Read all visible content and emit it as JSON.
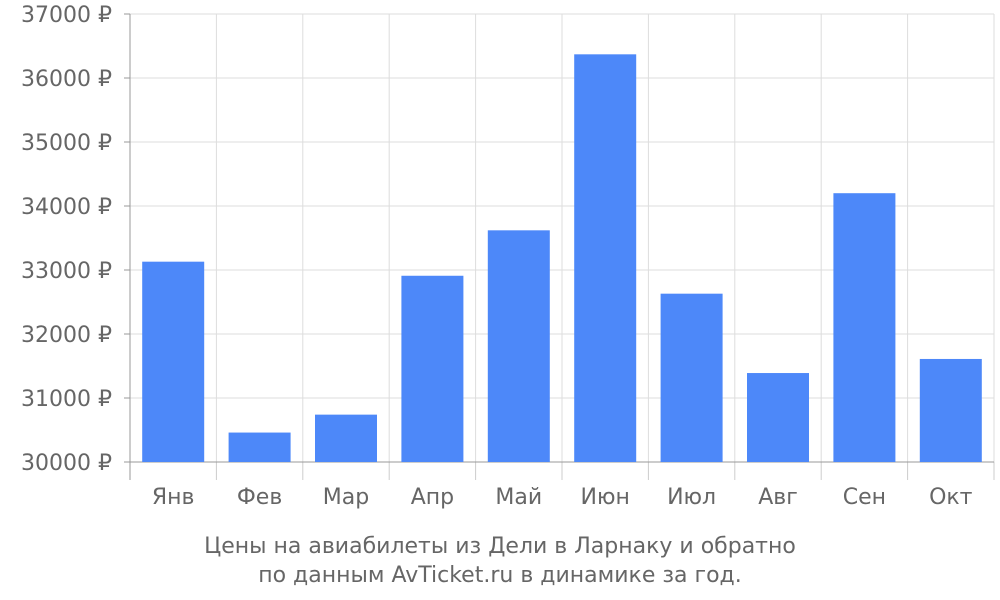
{
  "chart_data": {
    "type": "bar",
    "categories": [
      "Янв",
      "Фев",
      "Мар",
      "Апр",
      "Май",
      "Июн",
      "Июл",
      "Авг",
      "Сен",
      "Окт"
    ],
    "values": [
      33130,
      30460,
      30740,
      32910,
      33620,
      36370,
      32630,
      31390,
      34200,
      31610
    ],
    "ylim": [
      30000,
      37000
    ],
    "yticks": [
      30000,
      31000,
      32000,
      33000,
      34000,
      35000,
      36000,
      37000
    ],
    "ytick_suffix": " ₽",
    "bar_color": "#4d88f9",
    "grid": true,
    "caption_lines": [
      "Цены на авиабилеты из Дели в Ларнаку и обратно",
      "по данным AvTicket.ru в динамике за год."
    ]
  }
}
